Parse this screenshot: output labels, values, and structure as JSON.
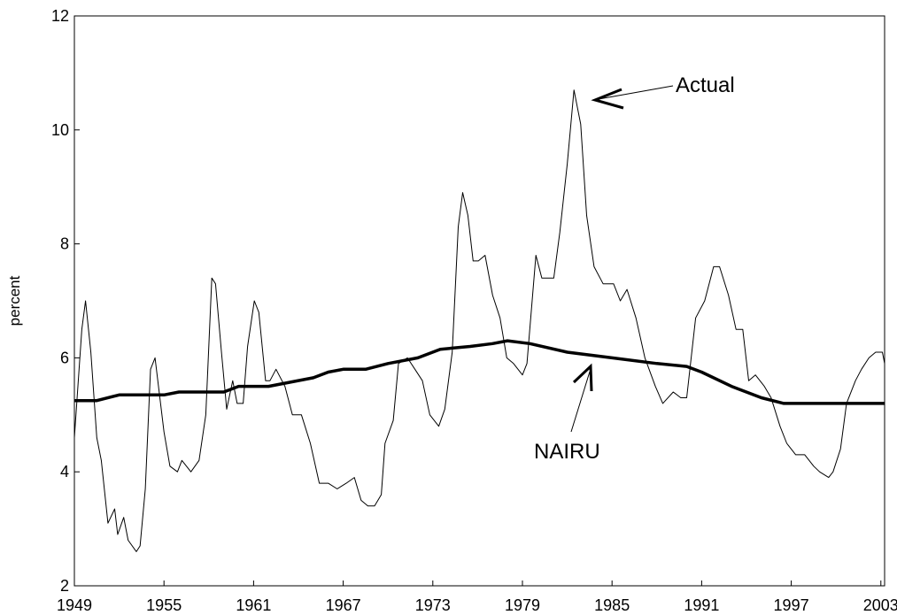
{
  "chart_data": {
    "type": "line",
    "y_label": "percent",
    "annotations": [
      "Actual",
      "NAIRU"
    ],
    "xlim": [
      1949,
      2003.25
    ],
    "xticks": [
      1949,
      1955,
      1961,
      1967,
      1973,
      1979,
      1985,
      1991,
      1997,
      2003
    ],
    "ylim": [
      2,
      12
    ],
    "yticks": [
      2,
      4,
      6,
      8,
      10,
      12
    ],
    "grid": false,
    "series": [
      {
        "name": "Actual",
        "color": "#000000",
        "width": 1,
        "x": [
          1949.0,
          1949.5,
          1949.75,
          1950.1,
          1950.5,
          1950.8,
          1951.25,
          1951.7,
          1951.9,
          1952.3,
          1952.6,
          1953.15,
          1953.4,
          1953.75,
          1954.1,
          1954.4,
          1955.0,
          1955.4,
          1955.9,
          1956.2,
          1956.8,
          1957.35,
          1957.8,
          1958.2,
          1958.45,
          1958.85,
          1959.2,
          1959.6,
          1959.9,
          1960.3,
          1960.6,
          1961.05,
          1961.35,
          1961.8,
          1962.1,
          1962.5,
          1963.1,
          1963.6,
          1964.2,
          1964.8,
          1965.4,
          1966.0,
          1966.6,
          1967.2,
          1967.75,
          1968.2,
          1968.65,
          1969.1,
          1969.55,
          1969.8,
          1970.35,
          1970.7,
          1971.3,
          1971.8,
          1972.3,
          1972.8,
          1973.4,
          1973.8,
          1974.3,
          1974.7,
          1975.0,
          1975.35,
          1975.7,
          1976.05,
          1976.5,
          1977.0,
          1977.5,
          1977.95,
          1978.4,
          1979.0,
          1979.3,
          1979.9,
          1980.3,
          1981.1,
          1981.5,
          1982.0,
          1982.45,
          1982.9,
          1983.3,
          1983.8,
          1984.4,
          1985.1,
          1985.55,
          1986.0,
          1986.6,
          1987.2,
          1987.9,
          1988.4,
          1989.1,
          1989.6,
          1990.0,
          1990.6,
          1991.2,
          1991.8,
          1992.2,
          1992.8,
          1993.3,
          1993.75,
          1994.15,
          1994.6,
          1995.2,
          1995.65,
          1996.25,
          1996.7,
          1997.3,
          1997.9,
          1998.5,
          1998.9,
          1999.5,
          1999.8,
          2000.3,
          2000.7,
          2001.3,
          2001.7,
          2002.2,
          2002.65,
          2003.1,
          2003.25
        ],
        "values": [
          4.6,
          6.5,
          7.0,
          6.1,
          4.6,
          4.2,
          3.1,
          3.35,
          2.9,
          3.2,
          2.8,
          2.6,
          2.7,
          3.7,
          5.8,
          6.0,
          4.7,
          4.1,
          4.0,
          4.2,
          4.0,
          4.2,
          5.0,
          7.4,
          7.3,
          6.1,
          5.1,
          5.6,
          5.2,
          5.2,
          6.2,
          7.0,
          6.8,
          5.6,
          5.6,
          5.8,
          5.5,
          5.0,
          5.0,
          4.5,
          3.8,
          3.8,
          3.7,
          3.8,
          3.9,
          3.5,
          3.4,
          3.4,
          3.6,
          4.5,
          4.9,
          5.9,
          6.0,
          5.8,
          5.6,
          5.0,
          4.8,
          5.1,
          6.1,
          8.3,
          8.9,
          8.5,
          7.7,
          7.7,
          7.8,
          7.1,
          6.7,
          6.0,
          5.9,
          5.7,
          5.9,
          7.8,
          7.4,
          7.4,
          8.2,
          9.4,
          10.7,
          10.1,
          8.5,
          7.6,
          7.3,
          7.3,
          7.0,
          7.2,
          6.7,
          6.0,
          5.5,
          5.2,
          5.4,
          5.3,
          5.3,
          6.7,
          7.0,
          7.6,
          7.6,
          7.1,
          6.5,
          6.5,
          5.6,
          5.7,
          5.5,
          5.3,
          4.8,
          4.5,
          4.3,
          4.3,
          4.1,
          4.0,
          3.9,
          4.0,
          4.4,
          5.2,
          5.6,
          5.8,
          6.0,
          6.1,
          6.1,
          5.9
        ]
      },
      {
        "name": "NAIRU",
        "color": "#000000",
        "width": 3.5,
        "x": [
          1949,
          1950.5,
          1952,
          1953,
          1955,
          1956,
          1959,
          1960,
          1962,
          1963,
          1965,
          1966,
          1967,
          1968.5,
          1970,
          1972,
          1973.5,
          1975.5,
          1977,
          1978,
          1979.5,
          1982,
          1985,
          1988,
          1990,
          1991,
          1993,
          1995,
          1996.5,
          2003.25
        ],
        "values": [
          5.25,
          5.25,
          5.35,
          5.35,
          5.35,
          5.4,
          5.4,
          5.5,
          5.5,
          5.55,
          5.65,
          5.75,
          5.8,
          5.8,
          5.9,
          6.0,
          6.15,
          6.2,
          6.25,
          6.3,
          6.25,
          6.1,
          6.0,
          5.9,
          5.85,
          5.75,
          5.5,
          5.3,
          5.2,
          5.2
        ]
      }
    ]
  }
}
